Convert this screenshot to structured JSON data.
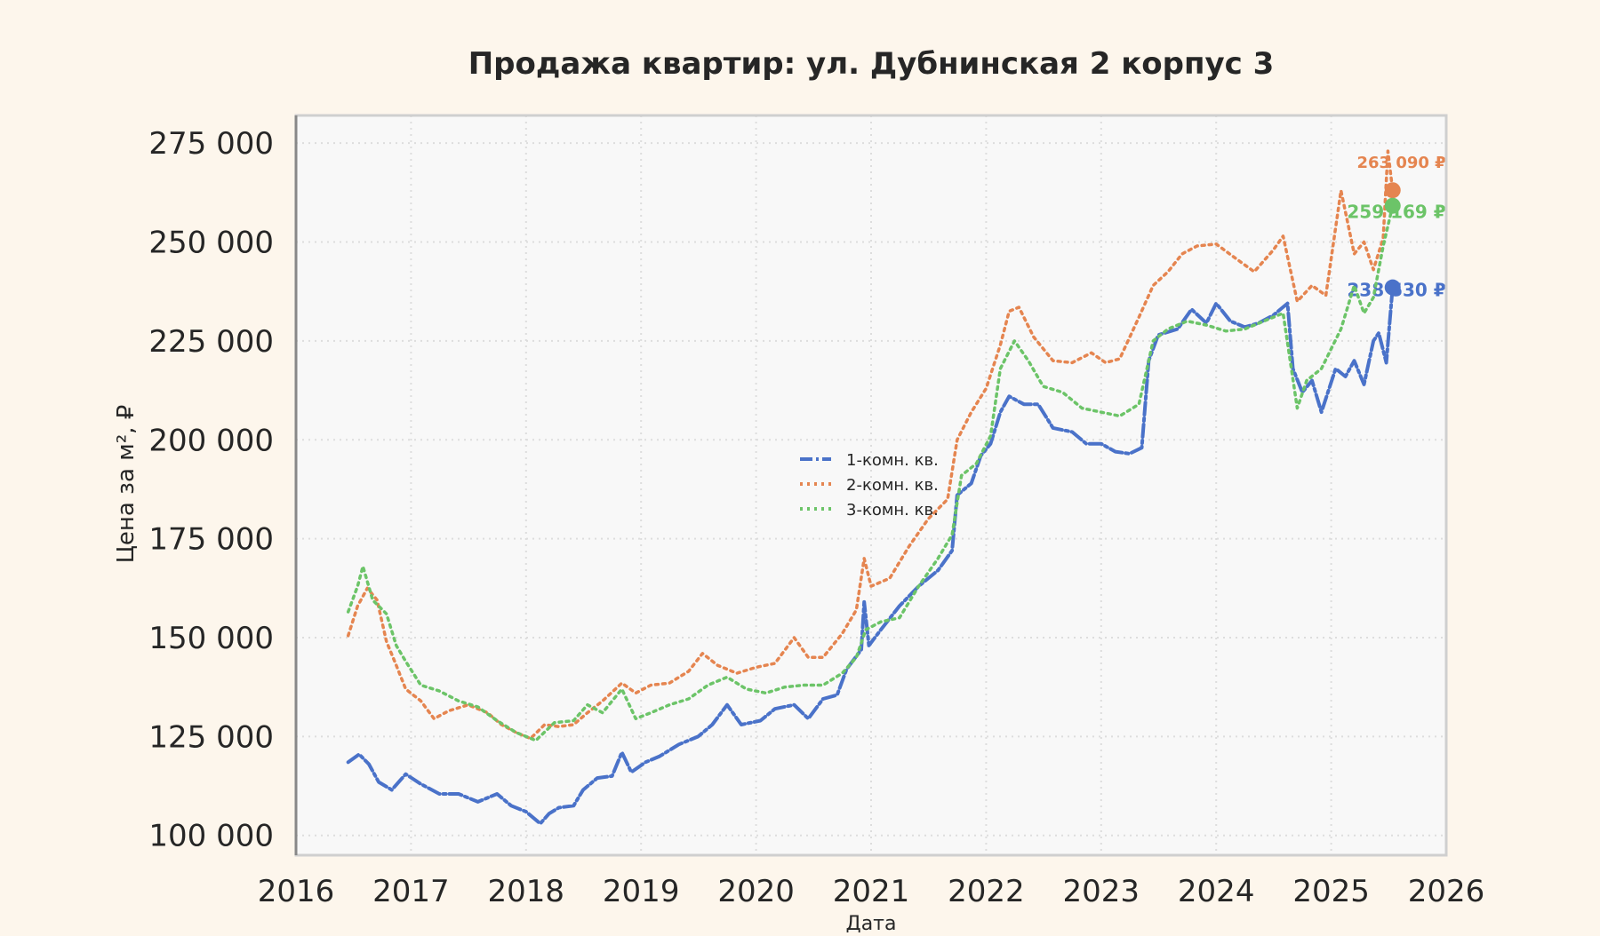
{
  "chart_data": {
    "type": "line",
    "title": "Продажа квартир: ул. Дубнинская 2 корпус 3",
    "xlabel": "Дата",
    "ylabel": "Цена за м², ₽",
    "x_ticks": [
      "2016",
      "2017",
      "2018",
      "2019",
      "2020",
      "2021",
      "2022",
      "2023",
      "2024",
      "2025",
      "2026"
    ],
    "y_ticks": [
      "100 000",
      "125 000",
      "150 000",
      "175 000",
      "200 000",
      "225 000",
      "250 000",
      "275 000"
    ],
    "xlim": [
      "2016-01-01",
      "2026-01-01"
    ],
    "ylim": [
      95000,
      282000
    ],
    "grid": true,
    "legend_position": "center",
    "colors": {
      "background": "#fdf6ec",
      "plot_bg": "#f8f8f8",
      "grid": "#dddddd"
    },
    "series": [
      {
        "name": "1-комн. кв.",
        "color": "#4a72c9",
        "line_style": "dash-dot",
        "last_value_label": "238 530 ₽",
        "points": [
          [
            "2016-06-15",
            118500
          ],
          [
            "2016-07-20",
            120500
          ],
          [
            "2016-08-20",
            118000
          ],
          [
            "2016-09-20",
            113500
          ],
          [
            "2016-11-01",
            111500
          ],
          [
            "2016-12-15",
            115500
          ],
          [
            "2017-02-01",
            113000
          ],
          [
            "2017-04-01",
            110500
          ],
          [
            "2017-06-01",
            110500
          ],
          [
            "2017-08-01",
            108500
          ],
          [
            "2017-10-01",
            110500
          ],
          [
            "2017-11-15",
            107500
          ],
          [
            "2018-01-01",
            106000
          ],
          [
            "2018-02-15",
            103000
          ],
          [
            "2018-03-15",
            105500
          ],
          [
            "2018-04-15",
            107000
          ],
          [
            "2018-06-01",
            107500
          ],
          [
            "2018-07-01",
            111500
          ],
          [
            "2018-08-15",
            114500
          ],
          [
            "2018-10-01",
            115000
          ],
          [
            "2018-11-01",
            121000
          ],
          [
            "2018-12-01",
            116000
          ],
          [
            "2019-01-15",
            118500
          ],
          [
            "2019-03-01",
            120000
          ],
          [
            "2019-05-01",
            123000
          ],
          [
            "2019-07-01",
            125000
          ],
          [
            "2019-08-15",
            128000
          ],
          [
            "2019-10-01",
            133000
          ],
          [
            "2019-11-15",
            128000
          ],
          [
            "2020-01-15",
            129000
          ],
          [
            "2020-03-01",
            132000
          ],
          [
            "2020-05-01",
            133000
          ],
          [
            "2020-06-15",
            129500
          ],
          [
            "2020-08-01",
            134500
          ],
          [
            "2020-09-15",
            135500
          ],
          [
            "2020-10-15",
            142000
          ],
          [
            "2020-12-01",
            147000
          ],
          [
            "2020-12-10",
            159000
          ],
          [
            "2020-12-25",
            148000
          ],
          [
            "2021-02-01",
            152000
          ],
          [
            "2021-04-01",
            158000
          ],
          [
            "2021-06-01",
            163000
          ],
          [
            "2021-08-01",
            167000
          ],
          [
            "2021-09-15",
            172000
          ],
          [
            "2021-10-01",
            186000
          ],
          [
            "2021-11-15",
            189000
          ],
          [
            "2021-12-15",
            196000
          ],
          [
            "2022-01-15",
            199000
          ],
          [
            "2022-02-15",
            207000
          ],
          [
            "2022-03-15",
            211000
          ],
          [
            "2022-05-01",
            209000
          ],
          [
            "2022-06-15",
            209000
          ],
          [
            "2022-08-01",
            203000
          ],
          [
            "2022-10-01",
            202000
          ],
          [
            "2022-11-15",
            199000
          ],
          [
            "2023-01-01",
            199000
          ],
          [
            "2023-02-15",
            197000
          ],
          [
            "2023-04-01",
            196500
          ],
          [
            "2023-05-10",
            198000
          ],
          [
            "2023-06-01",
            220000
          ],
          [
            "2023-07-01",
            226500
          ],
          [
            "2023-09-01",
            228000
          ],
          [
            "2023-10-15",
            233000
          ],
          [
            "2023-12-01",
            229500
          ],
          [
            "2024-01-01",
            234500
          ],
          [
            "2024-02-15",
            230000
          ],
          [
            "2024-04-01",
            228500
          ],
          [
            "2024-05-15",
            229500
          ],
          [
            "2024-07-01",
            231500
          ],
          [
            "2024-08-15",
            234500
          ],
          [
            "2024-09-01",
            218000
          ],
          [
            "2024-10-01",
            212000
          ],
          [
            "2024-11-01",
            215000
          ],
          [
            "2024-12-01",
            207000
          ],
          [
            "2025-01-15",
            218000
          ],
          [
            "2025-02-15",
            216000
          ],
          [
            "2025-03-15",
            220000
          ],
          [
            "2025-04-15",
            214000
          ],
          [
            "2025-05-15",
            225000
          ],
          [
            "2025-06-01",
            227000
          ],
          [
            "2025-06-25",
            219500
          ],
          [
            "2025-07-15",
            238530
          ]
        ]
      },
      {
        "name": "2-комн. кв.",
        "color": "#e58550",
        "line_style": "dotted",
        "last_value_label": "263 090 ₽",
        "points": [
          [
            "2016-06-15",
            150500
          ],
          [
            "2016-07-15",
            158000
          ],
          [
            "2016-08-15",
            162500
          ],
          [
            "2016-09-15",
            159500
          ],
          [
            "2016-10-15",
            149000
          ],
          [
            "2016-11-15",
            143000
          ],
          [
            "2016-12-15",
            137000
          ],
          [
            "2017-02-01",
            134000
          ],
          [
            "2017-03-15",
            129500
          ],
          [
            "2017-05-01",
            131500
          ],
          [
            "2017-07-01",
            133000
          ],
          [
            "2017-09-01",
            131000
          ],
          [
            "2017-10-15",
            128000
          ],
          [
            "2017-12-01",
            126000
          ],
          [
            "2018-01-15",
            124500
          ],
          [
            "2018-03-01",
            128000
          ],
          [
            "2018-04-15",
            127500
          ],
          [
            "2018-06-01",
            128000
          ],
          [
            "2018-07-15",
            131000
          ],
          [
            "2018-09-01",
            134000
          ],
          [
            "2018-11-01",
            138500
          ],
          [
            "2018-12-15",
            136000
          ],
          [
            "2019-02-01",
            138000
          ],
          [
            "2019-04-01",
            138500
          ],
          [
            "2019-06-01",
            141500
          ],
          [
            "2019-07-15",
            146000
          ],
          [
            "2019-09-01",
            143000
          ],
          [
            "2019-11-01",
            141000
          ],
          [
            "2020-01-01",
            142500
          ],
          [
            "2020-03-01",
            143500
          ],
          [
            "2020-05-01",
            150000
          ],
          [
            "2020-06-15",
            145000
          ],
          [
            "2020-08-01",
            145000
          ],
          [
            "2020-10-01",
            151000
          ],
          [
            "2020-11-15",
            157000
          ],
          [
            "2020-12-10",
            170000
          ],
          [
            "2021-01-01",
            163000
          ],
          [
            "2021-03-01",
            165000
          ],
          [
            "2021-05-01",
            173000
          ],
          [
            "2021-07-01",
            180000
          ],
          [
            "2021-09-01",
            185000
          ],
          [
            "2021-10-01",
            200000
          ],
          [
            "2021-11-15",
            207000
          ],
          [
            "2022-01-01",
            213000
          ],
          [
            "2022-02-15",
            224000
          ],
          [
            "2022-03-15",
            232500
          ],
          [
            "2022-04-15",
            233500
          ],
          [
            "2022-06-01",
            226000
          ],
          [
            "2022-08-01",
            220000
          ],
          [
            "2022-10-01",
            219500
          ],
          [
            "2022-12-01",
            222000
          ],
          [
            "2023-01-15",
            219500
          ],
          [
            "2023-03-01",
            220500
          ],
          [
            "2023-05-01",
            231000
          ],
          [
            "2023-06-15",
            239000
          ],
          [
            "2023-08-01",
            242500
          ],
          [
            "2023-09-15",
            247000
          ],
          [
            "2023-11-01",
            249000
          ],
          [
            "2024-01-01",
            249500
          ],
          [
            "2024-03-01",
            246000
          ],
          [
            "2024-05-01",
            242500
          ],
          [
            "2024-07-01",
            248000
          ],
          [
            "2024-08-01",
            251500
          ],
          [
            "2024-09-15",
            235000
          ],
          [
            "2024-11-01",
            239000
          ],
          [
            "2024-12-15",
            236500
          ],
          [
            "2025-02-01",
            263000
          ],
          [
            "2025-03-15",
            247000
          ],
          [
            "2025-04-15",
            250000
          ],
          [
            "2025-05-15",
            243000
          ],
          [
            "2025-06-15",
            251000
          ],
          [
            "2025-06-30",
            273000
          ],
          [
            "2025-07-15",
            263090
          ]
        ]
      },
      {
        "name": "3-комн. кв.",
        "color": "#6cc468",
        "line_style": "dotted",
        "last_value_label": "259 169 ₽",
        "points": [
          [
            "2016-06-15",
            156500
          ],
          [
            "2016-07-15",
            163000
          ],
          [
            "2016-08-01",
            168000
          ],
          [
            "2016-09-01",
            159500
          ],
          [
            "2016-10-15",
            156000
          ],
          [
            "2016-11-15",
            148000
          ],
          [
            "2016-12-15",
            144000
          ],
          [
            "2017-02-01",
            138000
          ],
          [
            "2017-04-01",
            136500
          ],
          [
            "2017-06-01",
            134000
          ],
          [
            "2017-08-01",
            132500
          ],
          [
            "2017-10-01",
            129000
          ],
          [
            "2017-12-01",
            126000
          ],
          [
            "2018-02-01",
            124000
          ],
          [
            "2018-04-01",
            128500
          ],
          [
            "2018-06-01",
            129000
          ],
          [
            "2018-07-15",
            133000
          ],
          [
            "2018-09-01",
            131000
          ],
          [
            "2018-11-01",
            137000
          ],
          [
            "2018-12-15",
            129500
          ],
          [
            "2019-02-01",
            131000
          ],
          [
            "2019-04-01",
            133000
          ],
          [
            "2019-06-01",
            134500
          ],
          [
            "2019-08-01",
            138000
          ],
          [
            "2019-10-01",
            140000
          ],
          [
            "2019-12-01",
            137000
          ],
          [
            "2020-02-01",
            136000
          ],
          [
            "2020-04-01",
            137500
          ],
          [
            "2020-06-01",
            138000
          ],
          [
            "2020-08-01",
            138000
          ],
          [
            "2020-10-01",
            141000
          ],
          [
            "2020-11-15",
            145000
          ],
          [
            "2020-12-15",
            152000
          ],
          [
            "2021-02-01",
            154000
          ],
          [
            "2021-04-01",
            155000
          ],
          [
            "2021-06-01",
            163000
          ],
          [
            "2021-08-01",
            170000
          ],
          [
            "2021-09-15",
            176000
          ],
          [
            "2021-10-15",
            191000
          ],
          [
            "2021-12-01",
            194000
          ],
          [
            "2022-01-15",
            201000
          ],
          [
            "2022-02-15",
            218000
          ],
          [
            "2022-04-01",
            225000
          ],
          [
            "2022-05-15",
            220000
          ],
          [
            "2022-07-01",
            213500
          ],
          [
            "2022-09-01",
            212000
          ],
          [
            "2022-11-01",
            208000
          ],
          [
            "2023-01-01",
            207000
          ],
          [
            "2023-03-01",
            206000
          ],
          [
            "2023-05-01",
            209000
          ],
          [
            "2023-06-15",
            225000
          ],
          [
            "2023-08-01",
            228000
          ],
          [
            "2023-10-01",
            230000
          ],
          [
            "2023-12-01",
            229000
          ],
          [
            "2024-02-01",
            227500
          ],
          [
            "2024-04-01",
            228000
          ],
          [
            "2024-06-01",
            230000
          ],
          [
            "2024-08-01",
            232000
          ],
          [
            "2024-09-15",
            208000
          ],
          [
            "2024-10-15",
            215000
          ],
          [
            "2024-12-01",
            218000
          ],
          [
            "2025-02-01",
            228000
          ],
          [
            "2025-03-15",
            239000
          ],
          [
            "2025-04-15",
            232000
          ],
          [
            "2025-05-15",
            236000
          ],
          [
            "2025-06-15",
            249000
          ],
          [
            "2025-07-15",
            259169
          ]
        ]
      }
    ]
  }
}
